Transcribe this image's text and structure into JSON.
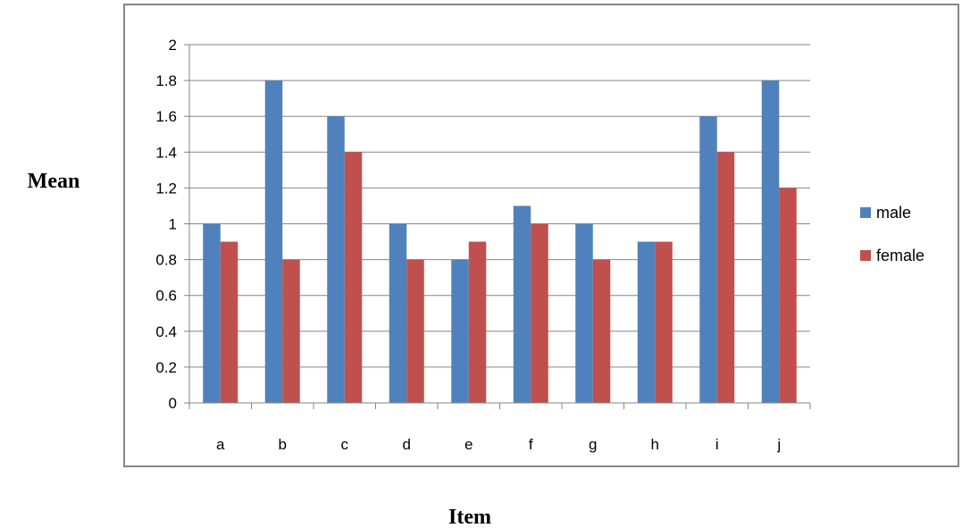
{
  "chart_data": {
    "type": "bar",
    "title": "",
    "xlabel": "Item",
    "ylabel": "Mean",
    "categories": [
      "a",
      "b",
      "c",
      "d",
      "e",
      "f",
      "g",
      "h",
      "i",
      "j"
    ],
    "series": [
      {
        "name": "male",
        "color": "#4F81BD",
        "values": [
          1.0,
          1.8,
          1.6,
          1.0,
          0.8,
          1.1,
          1.0,
          0.9,
          1.6,
          1.8
        ]
      },
      {
        "name": "female",
        "color": "#C0504D",
        "values": [
          0.9,
          0.8,
          1.4,
          0.8,
          0.9,
          1.0,
          0.8,
          0.9,
          1.4,
          1.2
        ]
      }
    ],
    "ylim": [
      0,
      2
    ],
    "yticks": [
      "0",
      "0.2",
      "0.4",
      "0.6",
      "0.8",
      "1",
      "1.2",
      "1.4",
      "1.6",
      "1.8",
      "2"
    ],
    "grid": true,
    "legend": "right"
  }
}
